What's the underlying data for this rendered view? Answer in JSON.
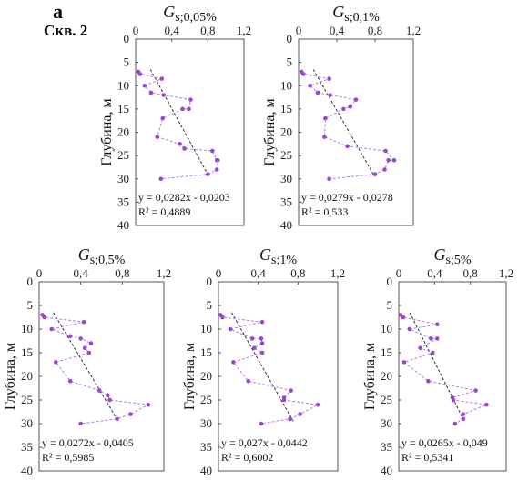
{
  "figure": {
    "panel_letter": "а",
    "well_label": "Скв. 2",
    "ylabel": "Глубина, м"
  },
  "chart_data": [
    {
      "type": "scatter",
      "title": "Gs;0,05%",
      "title_main": "G",
      "title_sub": "s;0,05%",
      "xlabel": "",
      "ylabel": "Глубина, м",
      "xlim": [
        0,
        1.2
      ],
      "ylim": [
        0,
        40
      ],
      "xticks": [
        "0",
        "0,4",
        "0,8",
        "1,2"
      ],
      "yticks": [
        "0",
        "5",
        "10",
        "15",
        "20",
        "25",
        "30",
        "35",
        "40"
      ],
      "y_inverted": true,
      "series": [
        {
          "depth": [
            7,
            7.5,
            8.5,
            10,
            11.5,
            12,
            13,
            15,
            15,
            17,
            21,
            22.5,
            23.5,
            24,
            26,
            26,
            28,
            29,
            30
          ],
          "gs": [
            0.03,
            0.05,
            0.29,
            0.1,
            0.17,
            0.31,
            0.61,
            0.59,
            0.52,
            0.3,
            0.24,
            0.49,
            0.54,
            0.85,
            0.9,
            0.91,
            0.9,
            0.8,
            0.28
          ]
        }
      ],
      "trend": {
        "slope": 0.0282,
        "intercept": -0.0203
      },
      "equation": "y = 0,0282x - 0,0203",
      "r2": "R² = 0,4889"
    },
    {
      "type": "scatter",
      "title": "Gs;0,1%",
      "title_main": "G",
      "title_sub": "s;0,1%",
      "xlabel": "",
      "ylabel": "Глубина, м",
      "xlim": [
        0,
        1.2
      ],
      "ylim": [
        0,
        40
      ],
      "xticks": [
        "0",
        "0,4",
        "0,8",
        "1,2"
      ],
      "yticks": [
        "0",
        "5",
        "10",
        "15",
        "20",
        "25",
        "30",
        "35",
        "40"
      ],
      "y_inverted": true,
      "series": [
        {
          "depth": [
            7,
            7.5,
            8.5,
            10,
            11.5,
            12,
            13,
            14.5,
            15,
            17,
            21,
            23,
            24,
            26,
            26,
            28,
            29,
            30
          ],
          "gs": [
            0.03,
            0.05,
            0.32,
            0.12,
            0.2,
            0.33,
            0.6,
            0.54,
            0.47,
            0.28,
            0.27,
            0.51,
            0.91,
            1.0,
            0.94,
            0.9,
            0.8,
            0.32
          ]
        }
      ],
      "trend": {
        "slope": 0.0279,
        "intercept": -0.0278
      },
      "equation": "y = 0,0279x - 0,0278",
      "r2": "R² = 0,533"
    },
    {
      "type": "scatter",
      "title": "Gs;0,5%",
      "title_main": "G",
      "title_sub": "s;0,5%",
      "xlabel": "",
      "ylabel": "Глубина, м",
      "xlim": [
        0,
        1.2
      ],
      "ylim": [
        0,
        40
      ],
      "xticks": [
        "0",
        "0,4",
        "0,8",
        "1,2"
      ],
      "yticks": [
        "0",
        "5",
        "10",
        "15",
        "20",
        "25",
        "30",
        "35",
        "40"
      ],
      "y_inverted": true,
      "series": [
        {
          "depth": [
            7,
            7.5,
            8.5,
            10,
            11.5,
            12,
            13,
            14,
            15,
            17,
            21,
            23,
            24,
            25,
            26,
            28,
            29,
            30
          ],
          "gs": [
            0.03,
            0.05,
            0.43,
            0.12,
            0.3,
            0.4,
            0.5,
            0.44,
            0.48,
            0.16,
            0.3,
            0.58,
            0.66,
            0.68,
            1.05,
            0.88,
            0.75,
            0.4
          ]
        }
      ],
      "trend": {
        "slope": 0.0272,
        "intercept": -0.0405
      },
      "equation": "y = 0,0272x - 0,0405",
      "r2": "R² = 0,5985"
    },
    {
      "type": "scatter",
      "title": "Gs;1%",
      "title_main": "G",
      "title_sub": "s;1%",
      "xlabel": "",
      "ylabel": "Глубина, м",
      "xlim": [
        0,
        1.2
      ],
      "ylim": [
        0,
        40
      ],
      "xticks": [
        "0",
        "0,4",
        "0,8",
        "1,2"
      ],
      "yticks": [
        "0",
        "5",
        "10",
        "15",
        "20",
        "25",
        "30",
        "35",
        "40"
      ],
      "y_inverted": true,
      "series": [
        {
          "depth": [
            7,
            7.5,
            8.5,
            10,
            12,
            12,
            13,
            14,
            15,
            17,
            21,
            23,
            24.5,
            25,
            26,
            28,
            29,
            30
          ],
          "gs": [
            0.02,
            0.04,
            0.44,
            0.12,
            0.34,
            0.43,
            0.44,
            0.36,
            0.44,
            0.15,
            0.3,
            0.73,
            0.66,
            0.66,
            1.0,
            0.82,
            0.72,
            0.43
          ]
        }
      ],
      "trend": {
        "slope": 0.027,
        "intercept": -0.0442
      },
      "equation": "y = 0,027x - 0,0442",
      "r2": "R² = 0,6002"
    },
    {
      "type": "scatter",
      "title": "Gs;5%",
      "title_main": "G",
      "title_sub": "s;5%",
      "xlabel": "",
      "ylabel": "Глубина, м",
      "xlim": [
        0,
        1.2
      ],
      "ylim": [
        0,
        40
      ],
      "xticks": [
        "0",
        "0,4",
        "0,8",
        "1,2"
      ],
      "yticks": [
        "0",
        "5",
        "10",
        "15",
        "20",
        "25",
        "30",
        "35",
        "40"
      ],
      "y_inverted": true,
      "series": [
        {
          "depth": [
            7,
            7.5,
            9,
            10,
            12,
            12,
            14,
            15,
            17,
            21,
            23,
            24.5,
            25,
            26,
            28,
            29,
            30
          ],
          "gs": [
            0.02,
            0.05,
            0.43,
            0.12,
            0.36,
            0.43,
            0.24,
            0.38,
            0.06,
            0.33,
            0.86,
            0.6,
            0.61,
            0.98,
            0.72,
            0.72,
            0.63
          ]
        }
      ],
      "trend": {
        "slope": 0.0265,
        "intercept": -0.049
      },
      "equation": "y = 0,0265x - 0,049",
      "r2": "R² = 0,5341"
    }
  ],
  "colors": {
    "points": "#9b45d6",
    "connector": "#b77fe0",
    "trend": "#333333",
    "axis": "#555555"
  }
}
